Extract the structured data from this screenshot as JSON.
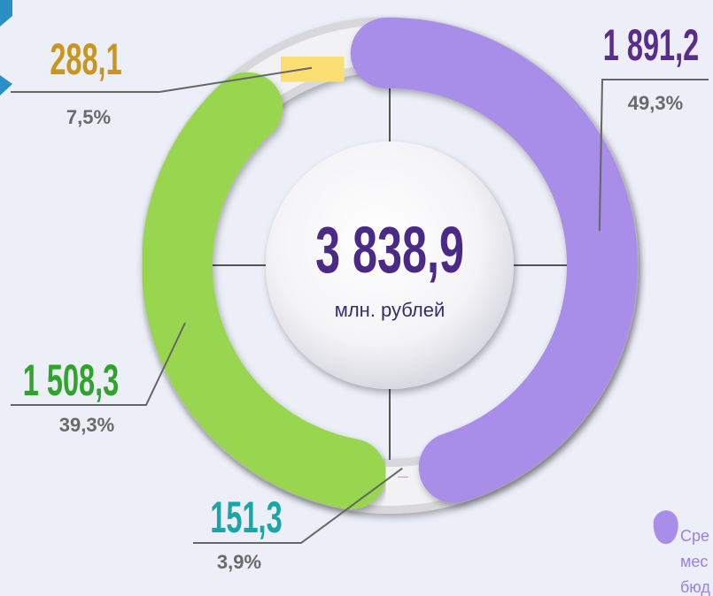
{
  "chart_data": {
    "type": "donut",
    "values": [
      1891.2,
      151.3,
      1508.3,
      288.1
    ],
    "value_labels": [
      "1 891,2",
      "151,3",
      "1 508,3",
      "288,1"
    ],
    "shares": [
      49.3,
      3.9,
      39.3,
      7.5
    ],
    "share_labels": [
      "49,3%",
      "3,9%",
      "39,3%",
      "7,5%"
    ],
    "colors": [
      "#a88ee8",
      "#3fd9d2",
      "#98d64f",
      "#fbdf74"
    ],
    "label_colors": [
      "#5a2c8c",
      "#1aa6a6",
      "#2ea52a",
      "#c8961e"
    ],
    "total": {
      "value": 3838.9,
      "label": "3 838,9"
    },
    "total_unit": "млн. рублей",
    "legend_fragment": [
      "Сре",
      "мес",
      "бюд"
    ]
  }
}
